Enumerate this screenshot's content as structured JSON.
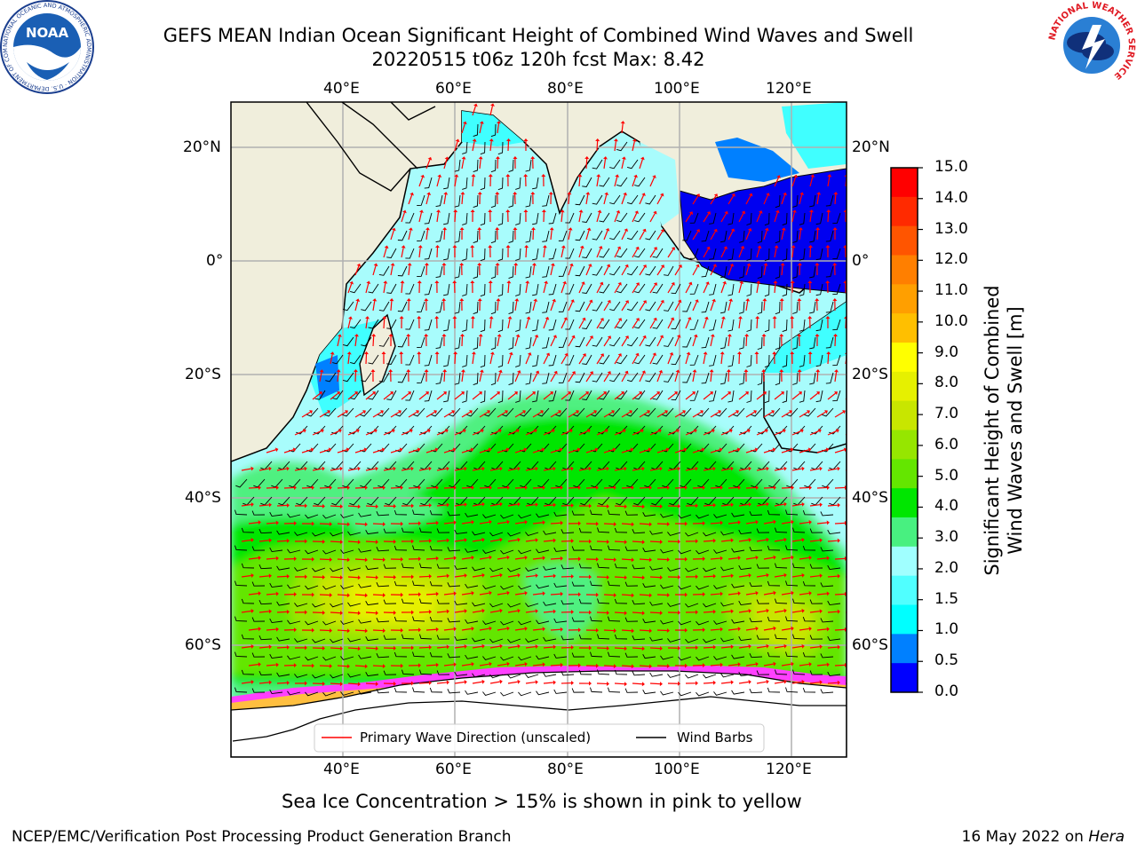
{
  "header": {
    "title_line1": "GEFS MEAN Indian Ocean Significant Height of Combined Wind Waves and Swell",
    "title_line2": "20220515 t06z 120h fcst   Max: 8.42"
  },
  "logos": {
    "noaa_text": "NOAA",
    "noaa_ring_text": "NATIONAL OCEANIC AND ATMOSPHERIC ADMINISTRATION · U.S. DEPARTMENT OF COMMERCE",
    "nws_ring_text": "NATIONAL WEATHER SERVICE"
  },
  "map": {
    "lon_ticks_top": [
      "40°E",
      "60°E",
      "80°E",
      "100°E",
      "120°E"
    ],
    "lon_ticks_bottom": [
      "40°E",
      "60°E",
      "80°E",
      "100°E",
      "120°E"
    ],
    "lat_ticks_left": [
      "20°N",
      "0°",
      "20°S",
      "40°S",
      "60°S"
    ],
    "lat_ticks_right": [
      "20°N",
      "0°",
      "20°S",
      "40°S",
      "60°S"
    ],
    "legend": {
      "wave_label": "Primary Wave Direction (unscaled)",
      "wind_label": "Wind Barbs",
      "wave_color": "#ff0000",
      "wind_color": "#000000"
    }
  },
  "colorbar": {
    "label_line1": "Significant Height of Combined",
    "label_line2": "Wind Waves and Swell [m]",
    "ticks": [
      "15.0",
      "14.0",
      "13.0",
      "12.0",
      "11.0",
      "10.0",
      "9.0",
      "8.0",
      "7.0",
      "6.0",
      "5.0",
      "4.0",
      "3.0",
      "2.0",
      "1.5",
      "1.0",
      "0.5",
      "0.0"
    ],
    "colors_top_to_bottom": [
      "#ff0000",
      "#ff2a00",
      "#ff5500",
      "#ff7f00",
      "#ff9f00",
      "#ffbf00",
      "#ffff00",
      "#e6f000",
      "#c8e600",
      "#96e600",
      "#64e600",
      "#00e600",
      "#48f080",
      "#a0ffff",
      "#50ffff",
      "#00ffff",
      "#0080ff",
      "#0000ff"
    ]
  },
  "notes": {
    "sea_ice": "Sea Ice Concentration > 15% is shown in pink to yellow"
  },
  "footer": {
    "left": "NCEP/EMC/Verification Post Processing Product Generation Branch",
    "right_prefix": "16 May 2022 on ",
    "right_machine": "Hera"
  }
}
